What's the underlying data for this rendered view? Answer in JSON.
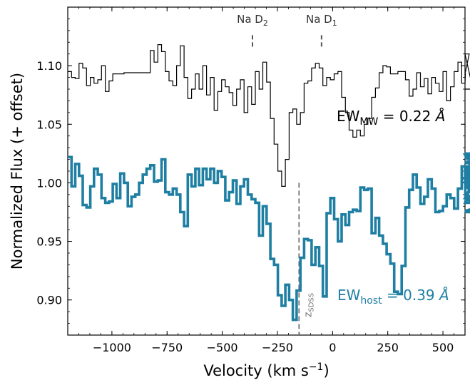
{
  "chart_data": {
    "type": "line",
    "title": "",
    "xlabel": {
      "main": "Velocity (km s",
      "sup": "−1",
      "close": ")"
    },
    "ylabel": "Normalized Flux (+ offset)",
    "xlim": [
      -1200,
      600
    ],
    "ylim": [
      0.87,
      1.15
    ],
    "grid": false,
    "x_ticks": [
      -1000,
      -750,
      -500,
      -250,
      0,
      250,
      500
    ],
    "x_tick_labels": [
      "−1000",
      "−750",
      "−500",
      "−250",
      "0",
      "250",
      "500"
    ],
    "y_ticks": [
      0.9,
      0.95,
      1.0,
      1.05,
      1.1
    ],
    "y_tick_labels": [
      "0.90",
      "0.95",
      "1.00",
      "1.05",
      "1.10"
    ],
    "step": 17,
    "colors": {
      "mw": "#000000",
      "host": "#1f7fa3",
      "marker": "#555555",
      "zsdss": "#777777"
    },
    "series": [
      {
        "key": "mw",
        "x_start": -1200,
        "values": [
          1.095,
          1.09,
          1.089,
          1.102,
          1.098,
          1.083,
          1.09,
          1.085,
          1.088,
          1.1,
          1.078,
          1.087,
          1.093,
          1.093,
          1.093,
          1.094,
          1.094,
          1.094,
          1.094,
          1.094,
          1.094,
          1.094,
          1.113,
          1.103,
          1.118,
          1.112,
          1.095,
          1.087,
          1.083,
          1.1,
          1.117,
          1.09,
          1.072,
          1.08,
          1.093,
          1.08,
          1.1,
          1.075,
          1.09,
          1.062,
          1.078,
          1.088,
          1.082,
          1.077,
          1.066,
          1.08,
          1.088,
          1.06,
          1.082,
          1.067,
          1.095,
          1.08,
          1.103,
          1.086,
          1.055,
          1.033,
          1.01,
          0.997,
          1.02,
          1.06,
          1.063,
          1.05,
          1.06,
          1.085,
          1.087,
          1.098,
          1.102,
          1.098,
          1.083,
          1.09,
          1.088,
          1.093,
          1.095,
          1.073,
          1.06,
          1.045,
          1.039,
          1.045,
          1.04,
          1.05,
          1.055,
          1.073,
          1.081,
          1.094,
          1.1,
          1.099,
          1.093,
          1.093,
          1.095,
          1.095,
          1.088,
          1.074,
          1.08,
          1.094,
          1.082,
          1.089,
          1.076,
          1.09,
          1.085,
          1.078,
          1.095,
          1.07,
          1.082,
          1.095,
          1.103,
          1.085,
          1.093,
          1.11,
          1.08
        ]
      },
      {
        "key": "host",
        "x_start": -1200,
        "values": [
          1.022,
          0.997,
          1.016,
          1.006,
          0.981,
          0.979,
          0.997,
          1.012,
          1.007,
          0.987,
          0.983,
          0.984,
          0.999,
          0.987,
          1.008,
          1.0,
          0.98,
          0.988,
          0.99,
          1.0,
          1.007,
          1.012,
          1.015,
          1.001,
          1.002,
          1.02,
          0.992,
          0.99,
          0.995,
          0.99,
          0.975,
          0.963,
          1.007,
          0.997,
          1.012,
          0.998,
          1.012,
          1.003,
          1.012,
          1.0,
          1.01,
          1.005,
          0.985,
          0.992,
          1.002,
          0.982,
          0.997,
          1.003,
          0.99,
          0.986,
          0.983,
          0.955,
          0.98,
          0.965,
          0.935,
          0.93,
          0.904,
          0.895,
          0.913,
          0.9,
          0.883,
          0.908,
          0.936,
          0.952,
          0.951,
          0.93,
          0.945,
          0.929,
          0.903,
          0.974,
          0.987,
          0.969,
          0.95,
          0.973,
          0.964,
          0.975,
          0.977,
          0.976,
          0.996,
          0.994,
          0.995,
          0.957,
          0.97,
          0.955,
          0.948,
          0.939,
          0.931,
          0.907,
          0.905,
          0.929,
          0.979,
          0.994,
          1.007,
          0.996,
          0.982,
          0.988,
          1.003,
          0.995,
          0.975,
          0.976,
          0.98,
          0.99,
          0.987,
          0.978,
          0.995,
          1.014,
          0.987,
          0.987,
          1.0,
          0.983,
          1.024,
          1.0,
          1.004,
          1.021,
          1.018,
          1.004,
          0.976,
          0.986,
          0.975,
          0.987,
          1.007,
          0.996,
          1.018,
          1.002,
          1.025,
          1.0,
          1.017,
          1.011,
          1.014,
          1.014,
          1.002,
          1.022,
          1.0,
          0.998,
          0.996,
          1.01,
          1.007,
          1.0,
          1.013,
          1.009,
          1.003,
          1.005,
          1.018,
          1.005,
          1.012
        ]
      }
    ],
    "markers": [
      {
        "label": "Na D",
        "sub": "2",
        "x": -363
      },
      {
        "label": "Na D",
        "sub": "1",
        "x": -50
      }
    ],
    "zsdss": {
      "x": -152,
      "label": "z",
      "sub": "SDSS"
    },
    "annotations": {
      "mw": {
        "prefix": "EW",
        "sub": "MW",
        "value": " = 0.22 ",
        "unit": "Å",
        "color": "#000000"
      },
      "host": {
        "prefix": "EW",
        "sub": "host",
        "value": " = 0.39 ",
        "unit": "Å",
        "color": "#1f7fa3"
      }
    }
  }
}
